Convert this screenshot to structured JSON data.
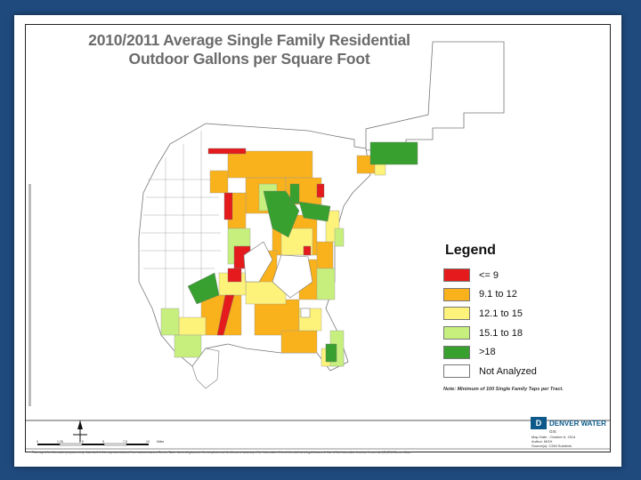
{
  "title": {
    "line1": "2010/2011 Average Single Family Residential",
    "line2": "Outdoor Gallons per Square Foot"
  },
  "legend": {
    "title": "Legend",
    "items": [
      {
        "label": "<= 9",
        "color": "#e41a1c"
      },
      {
        "label": "9.1 to 12",
        "color": "#f9b21b"
      },
      {
        "label": "12.1 to 15",
        "color": "#fdf27a"
      },
      {
        "label": "15.1 to 18",
        "color": "#c6ef7e"
      },
      {
        "label": ">18",
        "color": "#38a02e"
      },
      {
        "label": "Not Analyzed",
        "color": "#ffffff"
      }
    ],
    "note": "Note: Minimum of 100 Single Family Taps per Tract."
  },
  "logo": {
    "name": "DENVER WATER",
    "sub": "GIS"
  },
  "map_info": {
    "date": "Map Date : October 6, 2014",
    "author": "Author: MGH",
    "source": "Source(s): CDM Subdivis"
  },
  "disclaimer": "This map is for information purposes only; data used in this map was obtained from various sources. Denver Water does not guarantee the completeness, timeliness or accuracy of the information. It is not intended as a legal document. Use of this information is at user's own risk. (C) 2014 Denver Water",
  "scale": {
    "ticks": [
      "0",
      "1.25",
      "2.5",
      "5",
      "7.5",
      "10"
    ],
    "unit": "Miles"
  },
  "north_arrow": "north-arrow-icon"
}
